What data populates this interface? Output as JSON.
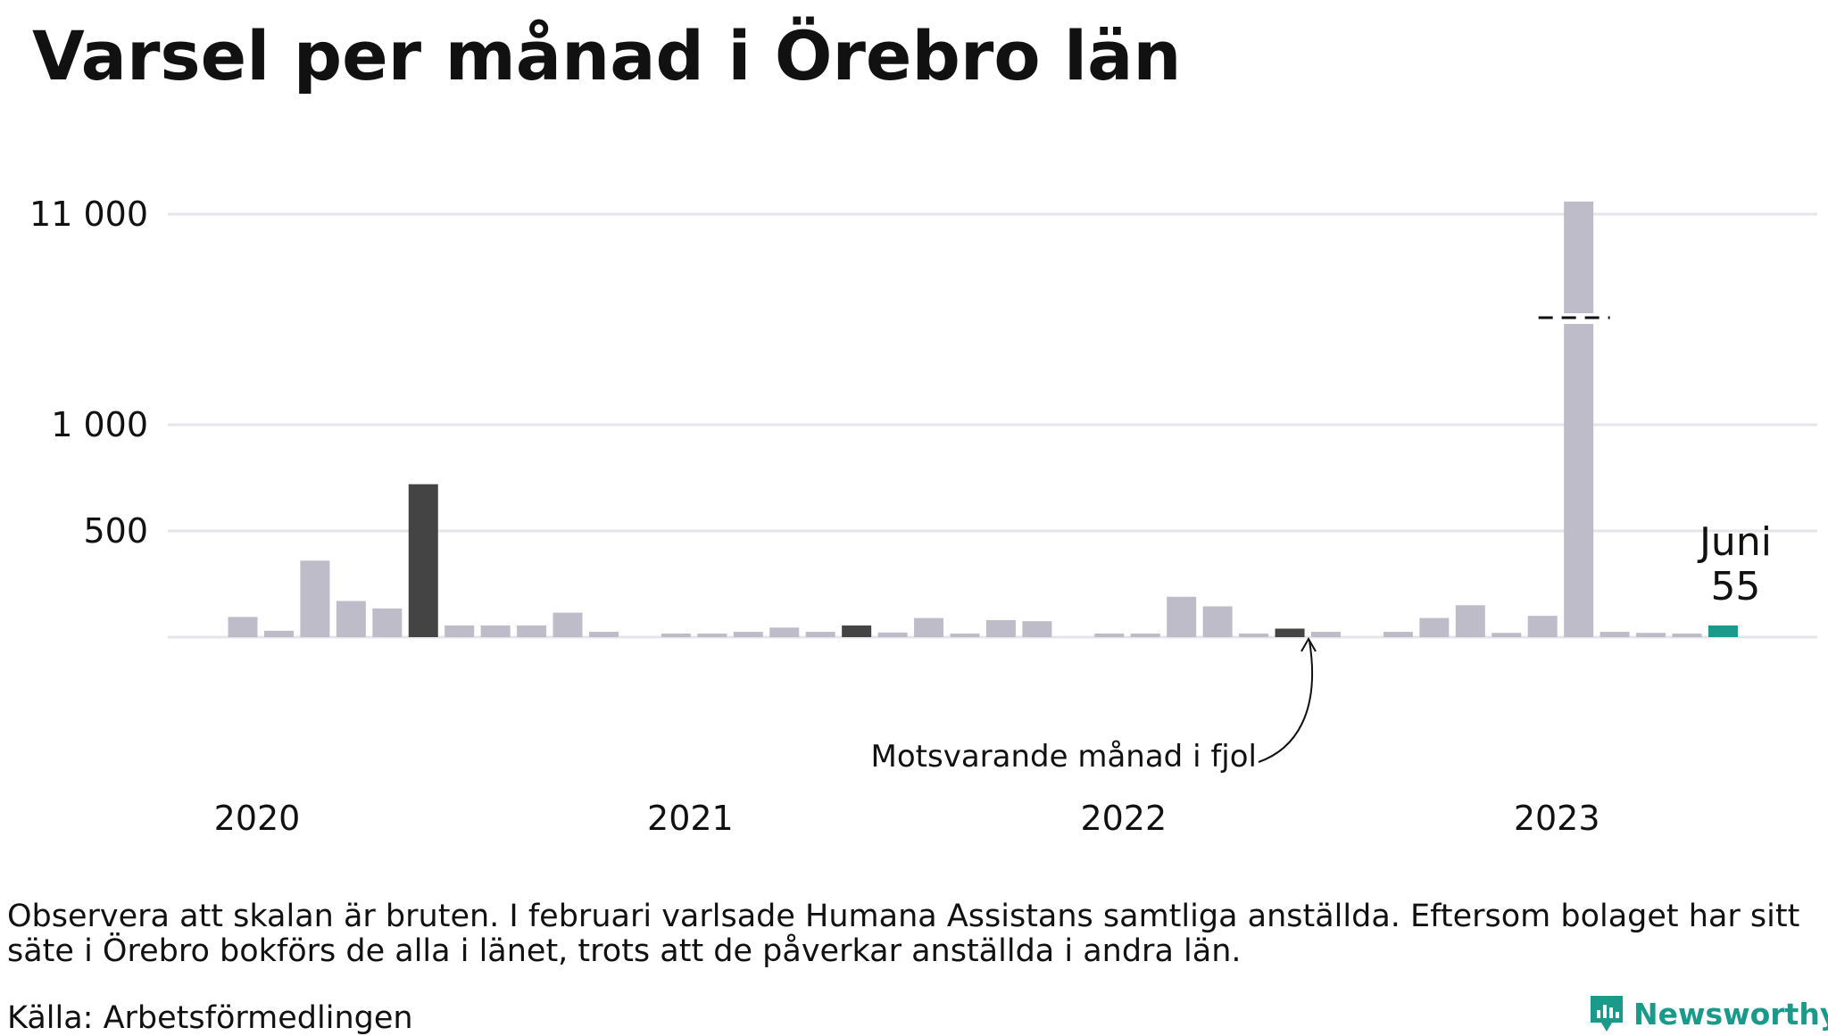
{
  "title": "Varsel per månad i Örebro län",
  "footnote": "Observera att skalan är bruten. I februari varlsade Humana Assistans samtliga anställda. Eftersom bolaget har sitt säte i Örebro bokförs de alla i länet, trots att de påverkar anställda i andra län.",
  "source": "Källa: Arbetsförmedlingen",
  "brand": "Newsworthy",
  "chart_data": {
    "type": "bar",
    "title": "Varsel per månad i Örebro län",
    "xlabel": "",
    "ylabel": "",
    "scale": "broken",
    "y_ticks": [
      {
        "value": 500,
        "label": "500"
      },
      {
        "value": 1000,
        "label": "1 000"
      },
      {
        "value": 11000,
        "label": "11 000"
      }
    ],
    "x_ticks": [
      {
        "label": "2020",
        "index": 0
      },
      {
        "label": "2021",
        "index": 12
      },
      {
        "label": "2022",
        "index": 24
      },
      {
        "label": "2023",
        "index": 36
      }
    ],
    "categories": [
      "2020-01",
      "2020-02",
      "2020-03",
      "2020-04",
      "2020-05",
      "2020-06",
      "2020-07",
      "2020-08",
      "2020-09",
      "2020-10",
      "2020-11",
      "2020-12",
      "2021-01",
      "2021-02",
      "2021-03",
      "2021-04",
      "2021-05",
      "2021-06",
      "2021-07",
      "2021-08",
      "2021-09",
      "2021-10",
      "2021-11",
      "2021-12",
      "2022-01",
      "2022-02",
      "2022-03",
      "2022-04",
      "2022-05",
      "2022-06",
      "2022-07",
      "2022-08",
      "2022-09",
      "2022-10",
      "2022-11",
      "2022-12",
      "2023-01",
      "2023-02",
      "2023-03",
      "2023-04",
      "2023-05",
      "2023-06"
    ],
    "values": [
      95,
      30,
      360,
      170,
      135,
      720,
      55,
      55,
      55,
      115,
      25,
      0,
      10,
      15,
      25,
      45,
      25,
      55,
      22,
      90,
      8,
      80,
      75,
      0,
      15,
      12,
      190,
      145,
      15,
      40,
      25,
      0,
      25,
      90,
      150,
      20,
      100,
      11600,
      25,
      20,
      10,
      55
    ],
    "highlight": [
      {
        "index": 5,
        "role": "same-month-last-year"
      },
      {
        "index": 17,
        "role": "same-month-last-year"
      },
      {
        "index": 29,
        "role": "same-month-last-year"
      },
      {
        "index": 41,
        "role": "current-month"
      }
    ],
    "colors": {
      "default": "#bdbcc8",
      "last_year": "#444444",
      "current": "#1a9a8a",
      "grid": "#e4e4ea"
    },
    "annotations": [
      {
        "text": "Motsvarande månad i fjol",
        "target_index": 29
      },
      {
        "text": "Juni",
        "target_index": 41
      },
      {
        "text": "55",
        "target_index": 41
      }
    ],
    "legend": "none",
    "grid": true
  }
}
